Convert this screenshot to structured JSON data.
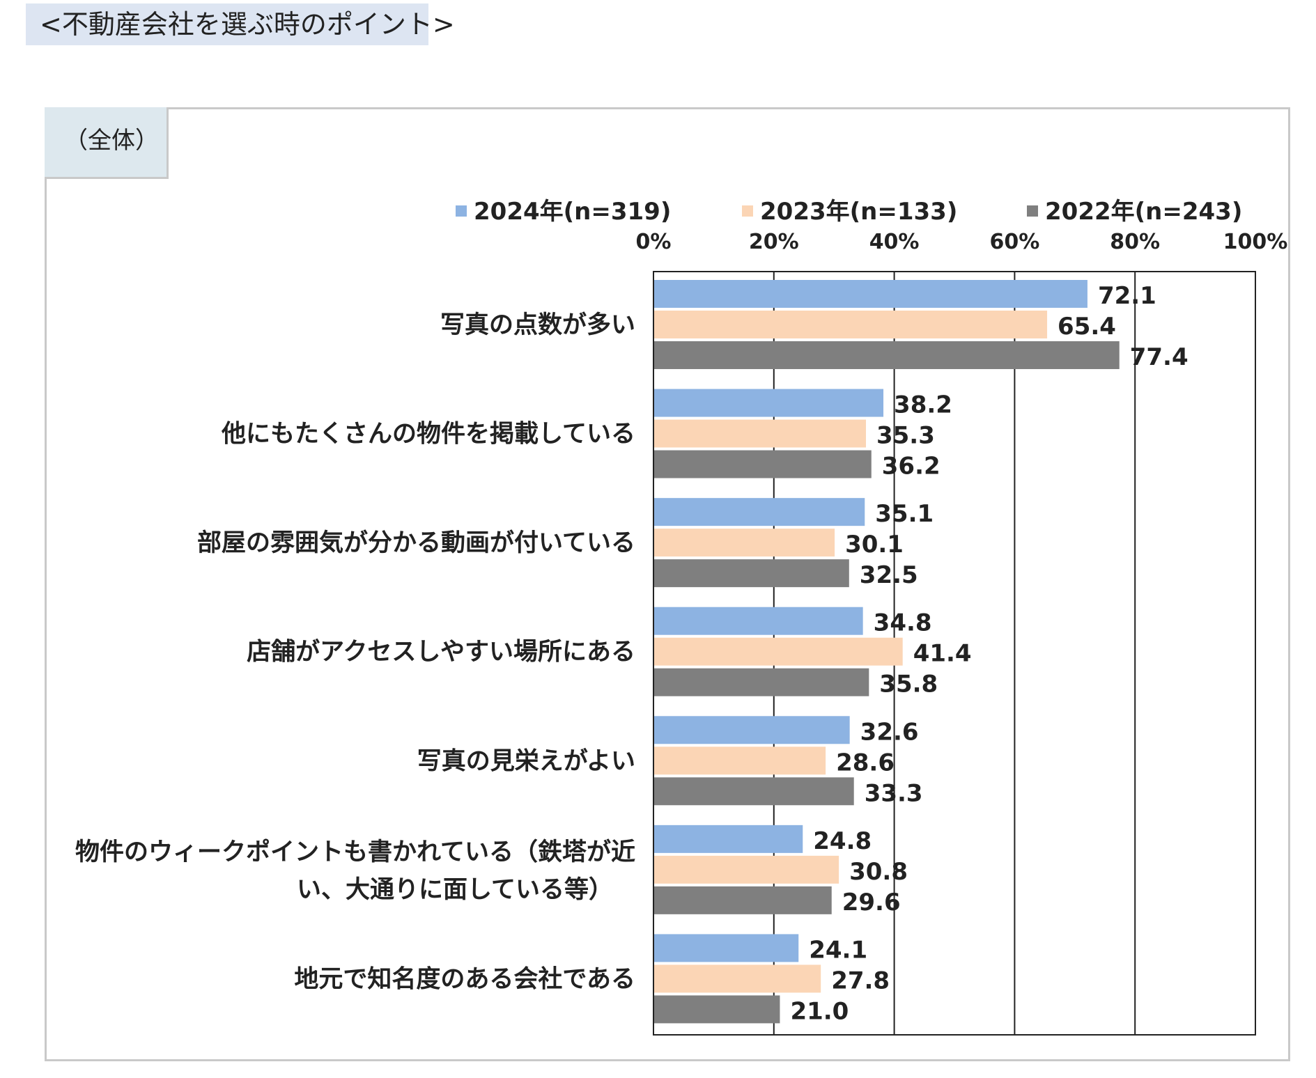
{
  "heading": "<不動産会社を選ぶ時のポイント>",
  "scope_label": "（全体）",
  "chart_data": {
    "type": "bar",
    "orientation": "horizontal",
    "title": "",
    "xlabel": "",
    "ylabel": "",
    "xlim": [
      0,
      100
    ],
    "x_ticks": [
      "0%",
      "20%",
      "40%",
      "60%",
      "80%",
      "100%"
    ],
    "grid": true,
    "legend_position": "top",
    "categories": [
      "写真の点数が多い",
      "他にもたくさんの物件を掲載している",
      "部屋の雰囲気が分かる動画が付いている",
      "店舗がアクセスしやすい場所にある",
      "写真の見栄えがよい",
      "物件のウィークポイントも書かれている（鉄塔が近 い、大通りに面している等）",
      "地元で知名度のある会社である"
    ],
    "category_lines": [
      [
        "写真の点数が多い"
      ],
      [
        "他にもたくさんの物件を掲載している"
      ],
      [
        "部屋の雰囲気が分かる動画が付いている"
      ],
      [
        "店舗がアクセスしやすい場所にある"
      ],
      [
        "写真の見栄えがよい"
      ],
      [
        "物件のウィークポイントも書かれている（鉄塔が近",
        "い、大通りに面している等）"
      ],
      [
        "地元で知名度のある会社である"
      ]
    ],
    "series": [
      {
        "name": "2024年(n=319)",
        "color": "#8db3e2",
        "values": [
          72.1,
          38.2,
          35.1,
          34.8,
          32.6,
          24.8,
          24.1
        ]
      },
      {
        "name": "2023年(n=133)",
        "color": "#fbd5b5",
        "values": [
          65.4,
          35.3,
          30.1,
          41.4,
          28.6,
          30.8,
          27.8
        ]
      },
      {
        "name": "2022年(n=243)",
        "color": "#7f7f7f",
        "values": [
          77.4,
          36.2,
          32.5,
          35.8,
          33.3,
          29.6,
          21.0
        ]
      }
    ]
  }
}
